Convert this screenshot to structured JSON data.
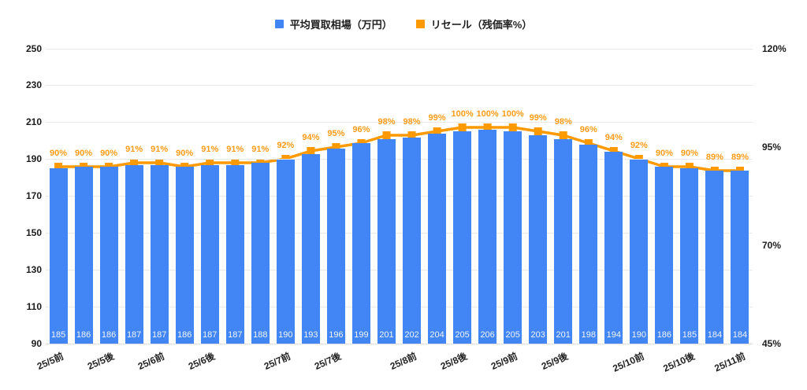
{
  "legend": {
    "items": [
      {
        "label": "平均買取相場（万円）",
        "color": "#4285f4"
      },
      {
        "label": "リセール（残価率%）",
        "color": "#ff9900"
      }
    ]
  },
  "chart_data": {
    "type": "bar",
    "subtype": "combo-bar-line",
    "grid": true,
    "legend_position": "top-center",
    "num_points": 28,
    "series": [
      {
        "name": "平均買取相場（万円）",
        "type": "bar",
        "axis": "left",
        "color": "#4285f4",
        "values": [
          185,
          186,
          186,
          187,
          187,
          186,
          187,
          187,
          188,
          190,
          193,
          196,
          199,
          201,
          202,
          204,
          205,
          206,
          205,
          203,
          201,
          198,
          194,
          190,
          186,
          185,
          184,
          184
        ],
        "value_labels": [
          "185",
          "186",
          "186",
          "187",
          "187",
          "186",
          "187",
          "187",
          "188",
          "190",
          "193",
          "196",
          "199",
          "201",
          "202",
          "204",
          "205",
          "206",
          "205",
          "203",
          "201",
          "198",
          "194",
          "190",
          "186",
          "185",
          "184",
          "184"
        ]
      },
      {
        "name": "リセール（残価率%）",
        "type": "line",
        "axis": "right",
        "color": "#ff9900",
        "marker": "square",
        "values": [
          90,
          90,
          90,
          91,
          91,
          90,
          91,
          91,
          91,
          92,
          94,
          95,
          96,
          98,
          98,
          99,
          100,
          100,
          100,
          99,
          98,
          96,
          94,
          92,
          90,
          90,
          89,
          89
        ],
        "value_labels": [
          "90%",
          "90%",
          "90%",
          "91%",
          "91%",
          "90%",
          "91%",
          "91%",
          "91%",
          "92%",
          "94%",
          "95%",
          "96%",
          "98%",
          "98%",
          "99%",
          "100%",
          "100%",
          "100%",
          "99%",
          "98%",
          "96%",
          "94%",
          "92%",
          "90%",
          "90%",
          "89%",
          "89%"
        ]
      }
    ],
    "x_axis": {
      "tick_labels": [
        "25/5前",
        "25/5後",
        "25/6前",
        "25/6後",
        "25/7前",
        "25/7後",
        "25/8前",
        "25/8後",
        "25/9前",
        "25/9後",
        "25/10前",
        "25/10後",
        "25/11前"
      ],
      "tick_positions": [
        0,
        2,
        4,
        6,
        9,
        11,
        14,
        16,
        18,
        20,
        23,
        25,
        27
      ],
      "label_rotation_deg": -24
    },
    "left_axis": {
      "min": 90,
      "max": 250,
      "ticks": [
        250,
        230,
        210,
        190,
        170,
        150,
        130,
        110,
        90
      ]
    },
    "right_axis": {
      "min": 45,
      "max": 120,
      "ticks": [
        {
          "value": 120,
          "label": "120%"
        },
        {
          "value": 95,
          "label": "95%"
        },
        {
          "value": 70,
          "label": "70%"
        },
        {
          "value": 45,
          "label": "45%"
        }
      ]
    },
    "colors": {
      "bar": "#4285f4",
      "line": "#ff9900",
      "pct_label": "#ff9c17",
      "gridline": "#e8e8e8",
      "axis_text": "#1c1c1c",
      "bar_value_text": "rgba(255,255,255,0.92)"
    }
  }
}
